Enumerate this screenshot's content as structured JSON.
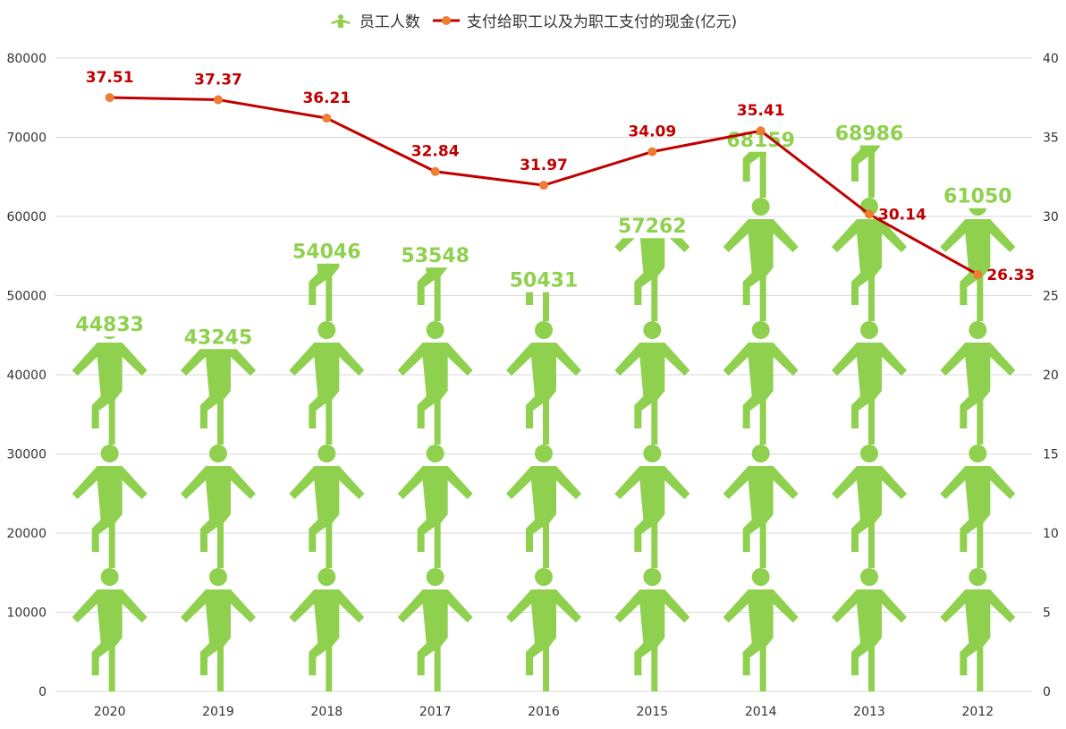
{
  "chart_data": {
    "type": "bar",
    "subtype": "pictorial-bar-with-line",
    "categories": [
      "2020",
      "2019",
      "2018",
      "2017",
      "2016",
      "2015",
      "2014",
      "2013",
      "2012"
    ],
    "series": [
      {
        "name": "员工人数",
        "type": "pictorial-bar",
        "axis": "left",
        "icon": "person-icon",
        "color": "#8fd14f",
        "values": [
          44833,
          43245,
          54046,
          53548,
          50431,
          57262,
          68159,
          68986,
          61050
        ]
      },
      {
        "name": "支付给职工以及为职工支付的现金(亿元)",
        "type": "line",
        "axis": "right",
        "color": "#c00000",
        "marker_color": "#ed7d31",
        "label_color": "#c00000",
        "values": [
          37.51,
          37.37,
          36.21,
          32.84,
          31.97,
          34.09,
          35.41,
          30.14,
          26.33
        ]
      }
    ],
    "y_left": {
      "range": [
        0,
        80000
      ],
      "ticks": [
        0,
        10000,
        20000,
        30000,
        40000,
        50000,
        60000,
        70000,
        80000
      ]
    },
    "y_right": {
      "range": [
        0,
        40
      ],
      "ticks": [
        0,
        5,
        10,
        15,
        20,
        25,
        30,
        35,
        40
      ]
    },
    "grid": true,
    "legend_position": "top-center"
  }
}
